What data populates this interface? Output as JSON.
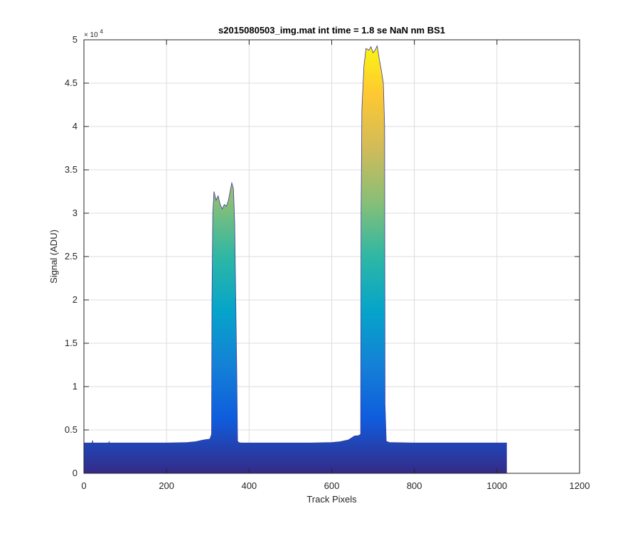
{
  "chart_data": {
    "type": "area",
    "title": "s2015080503_img.mat int time = 1.8 se  NaN nm BS1",
    "xlabel": "Track Pixels",
    "ylabel": "Signal (ADU)",
    "xlim": [
      0,
      1200
    ],
    "ylim": [
      0,
      50000
    ],
    "x_ticks": [
      0,
      200,
      400,
      600,
      800,
      1000,
      1200
    ],
    "x_tick_labels": [
      "0",
      "200",
      "400",
      "600",
      "800",
      "1000",
      "1200"
    ],
    "y_ticks": [
      0,
      5000,
      10000,
      15000,
      20000,
      25000,
      30000,
      35000,
      40000,
      45000,
      50000
    ],
    "y_tick_labels": [
      "0",
      "0.5",
      "1",
      "1.5",
      "2",
      "2.5",
      "3",
      "3.5",
      "4",
      "4.5",
      "5"
    ],
    "y_exponent_label": "× 10",
    "y_exponent_power": "4",
    "grid": true,
    "colormap": "parula",
    "colormap_stops": [
      "#352a87",
      "#0f5cdd",
      "#1481d6",
      "#06a4ca",
      "#2eb7a4",
      "#87bf77",
      "#d1bb59",
      "#fec832",
      "#f9fb0e"
    ],
    "series": [
      {
        "x": [
          0,
          20,
          21,
          22,
          40,
          60,
          61,
          62,
          100,
          150,
          200,
          250,
          270,
          290,
          305,
          309,
          310,
          312,
          315,
          320,
          325,
          330,
          335,
          340,
          345,
          350,
          355,
          358,
          360,
          362,
          365,
          370,
          372,
          375,
          380,
          400,
          450,
          500,
          550,
          600,
          620,
          640,
          655,
          665,
          670,
          671,
          673,
          678,
          683,
          690,
          695,
          700,
          705,
          710,
          715,
          720,
          725,
          728,
          729,
          732,
          740,
          800,
          900,
          1000,
          1024
        ],
        "values": [
          3500,
          3500,
          3800,
          3500,
          3500,
          3500,
          3650,
          3500,
          3500,
          3500,
          3500,
          3550,
          3650,
          3850,
          3950,
          4500,
          20000,
          30000,
          32500,
          31500,
          32000,
          31000,
          30500,
          31000,
          30800,
          31500,
          32800,
          33500,
          33200,
          32800,
          29000,
          12000,
          3700,
          3550,
          3500,
          3500,
          3500,
          3500,
          3500,
          3550,
          3650,
          3850,
          4300,
          4350,
          4500,
          30000,
          42000,
          47000,
          49000,
          48800,
          49200,
          48500,
          48800,
          49300,
          47800,
          46500,
          45000,
          40000,
          8000,
          3700,
          3550,
          3500,
          3500,
          3500,
          3500
        ]
      }
    ]
  }
}
